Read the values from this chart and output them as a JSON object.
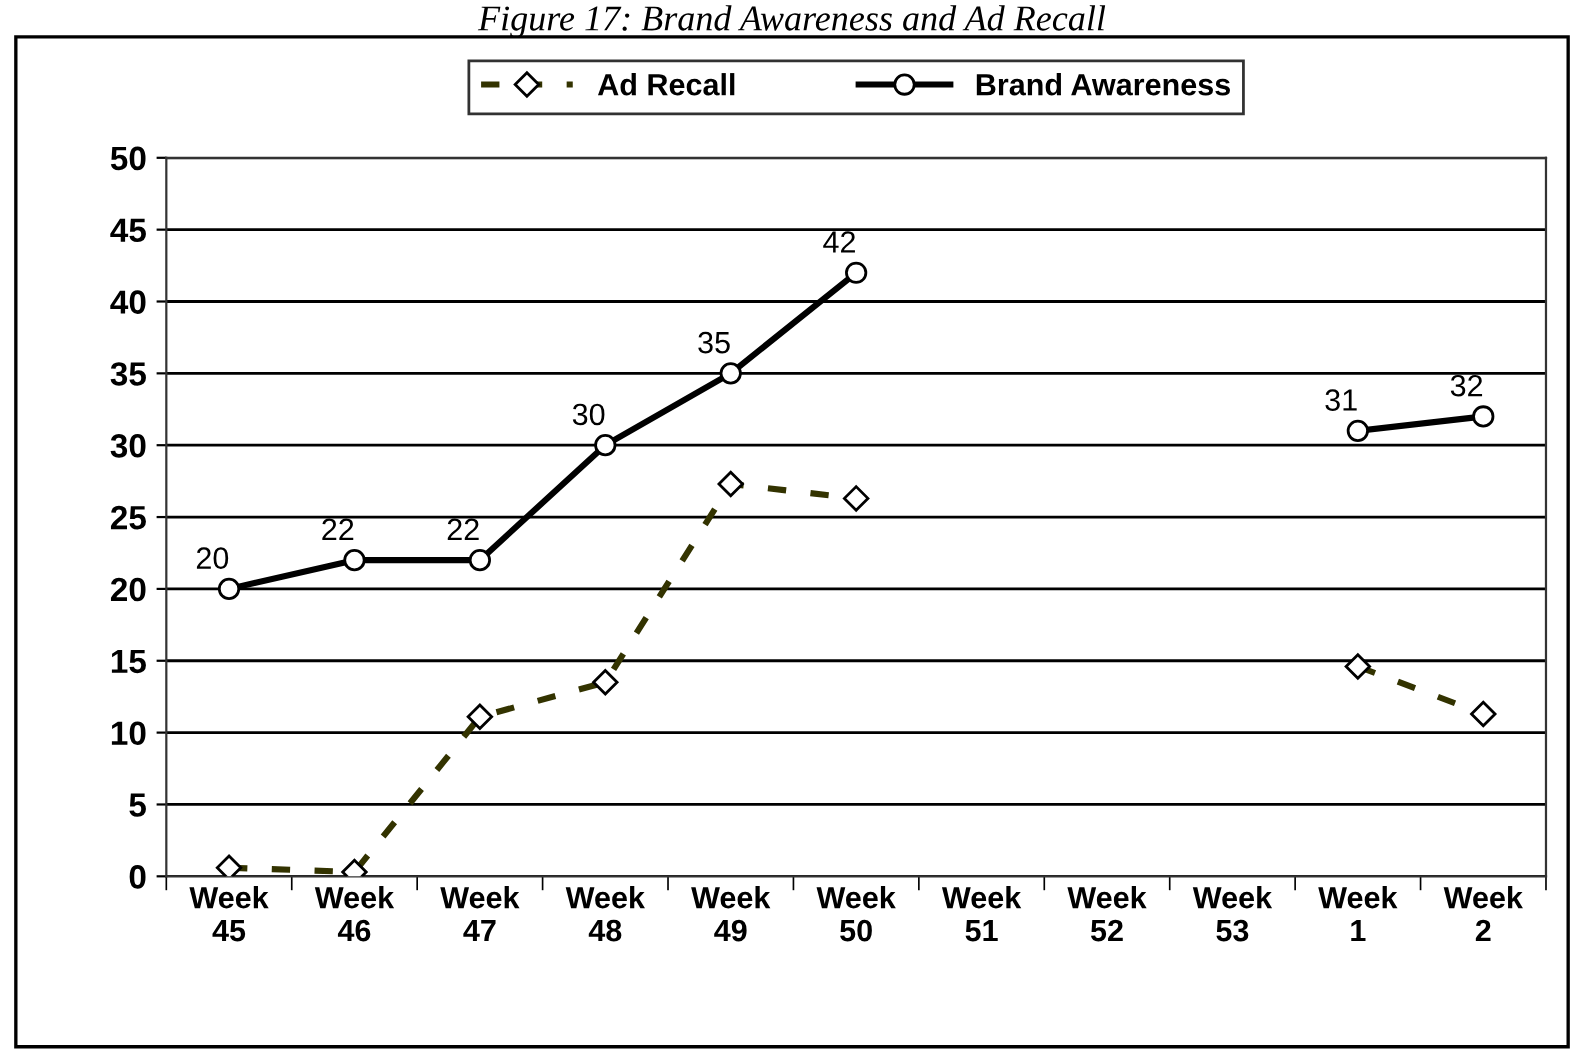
{
  "chart_data": {
    "type": "line",
    "title": "Figure 17: Brand Awareness and Ad Recall",
    "categories": [
      "Week\n45",
      "Week\n46",
      "Week\n47",
      "Week\n48",
      "Week\n49",
      "Week\n50",
      "Week\n51",
      "Week\n52",
      "Week\n53",
      "Week\n1",
      "Week\n2"
    ],
    "series": [
      {
        "name": "Ad Recall",
        "color": "#333300",
        "line_style": "dashed",
        "marker": "diamond",
        "values": [
          0.6,
          0.3,
          11.1,
          13.5,
          27.3,
          26.3,
          null,
          null,
          null,
          14.6,
          11.3
        ]
      },
      {
        "name": "Brand Awareness",
        "color": "#000000",
        "line_style": "solid",
        "marker": "circle",
        "data_labels": true,
        "values": [
          20,
          22,
          22,
          30,
          35,
          42,
          null,
          null,
          null,
          31,
          32
        ]
      }
    ],
    "ylim": [
      0,
      50
    ],
    "yticks": [
      0,
      5,
      10,
      15,
      20,
      25,
      30,
      35,
      40,
      45,
      50
    ],
    "grid": "y",
    "legend": "top"
  }
}
